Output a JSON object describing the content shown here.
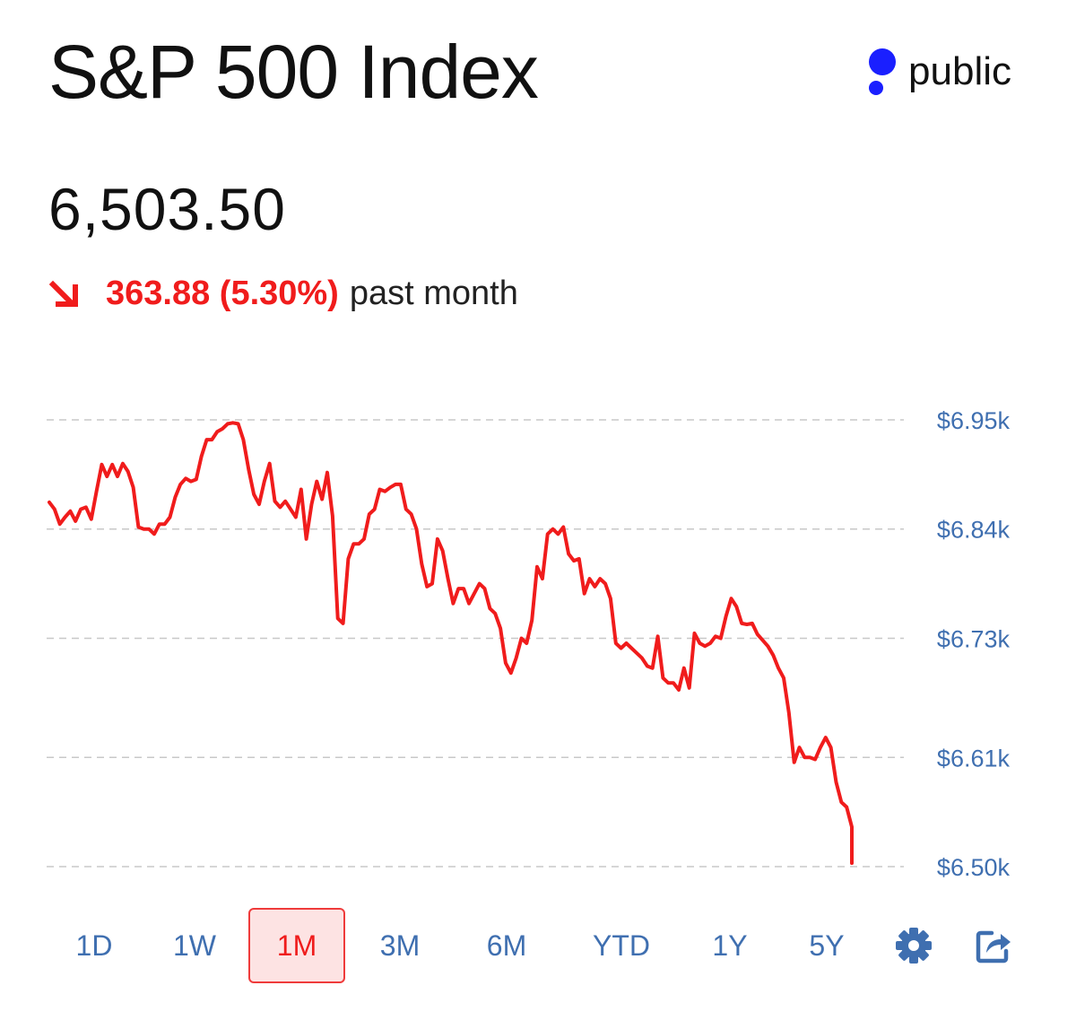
{
  "header": {
    "title": "S&P 500 Index",
    "brand_name": "public"
  },
  "quote": {
    "price": "6,503.50",
    "change_value": "363.88 (5.30%)",
    "change_period": "past month",
    "direction": "down"
  },
  "colors": {
    "down": "#f01c1c",
    "axis_label": "#3f6fb0",
    "grid": "#c8c8c8",
    "brand_blue": "#1a1fff"
  },
  "range_tabs": {
    "items": [
      "1D",
      "1W",
      "1M",
      "3M",
      "6M",
      "YTD",
      "1Y",
      "5Y"
    ],
    "selected": "1M"
  },
  "toolbar": {
    "settings_icon": "gear-icon",
    "share_icon": "share-icon"
  },
  "chart_data": {
    "type": "line",
    "title": "S&P 500 Index",
    "xlabel": "",
    "ylabel": "",
    "y_ticks": [
      {
        "value": 6950,
        "label": "$6.95k"
      },
      {
        "value": 6840,
        "label": "$6.84k"
      },
      {
        "value": 6730,
        "label": "$6.73k"
      },
      {
        "value": 6610,
        "label": "$6.61k"
      },
      {
        "value": 6500,
        "label": "$6.50k"
      }
    ],
    "ylim": [
      6500,
      6950
    ],
    "grid": true,
    "series": [
      {
        "name": "S&P 500",
        "values": [
          6867,
          6860,
          6845,
          6852,
          6858,
          6848,
          6860,
          6862,
          6850,
          6878,
          6905,
          6893,
          6905,
          6893,
          6906,
          6898,
          6882,
          6842,
          6840,
          6840,
          6835,
          6845,
          6845,
          6852,
          6872,
          6885,
          6891,
          6888,
          6890,
          6913,
          6930,
          6930,
          6938,
          6941,
          6946,
          6947,
          6946,
          6930,
          6900,
          6875,
          6865,
          6888,
          6906,
          6868,
          6862,
          6868,
          6860,
          6852,
          6880,
          6830,
          6865,
          6888,
          6870,
          6897,
          6853,
          6750,
          6745,
          6810,
          6825,
          6825,
          6830,
          6855,
          6860,
          6880,
          6878,
          6882,
          6885,
          6885,
          6860,
          6855,
          6840,
          6805,
          6782,
          6785,
          6830,
          6818,
          6790,
          6765,
          6780,
          6780,
          6765,
          6775,
          6785,
          6780,
          6760,
          6755,
          6740,
          6705,
          6695,
          6710,
          6730,
          6725,
          6748,
          6802,
          6790,
          6835,
          6840,
          6835,
          6842,
          6815,
          6808,
          6810,
          6775,
          6790,
          6782,
          6790,
          6785,
          6770,
          6725,
          6720,
          6725,
          6720,
          6715,
          6710,
          6702,
          6700,
          6732,
          6690,
          6685,
          6685,
          6678,
          6700,
          6680,
          6735,
          6725,
          6722,
          6725,
          6732,
          6730,
          6752,
          6770,
          6762,
          6745,
          6744,
          6745,
          6734,
          6728,
          6722,
          6713,
          6700,
          6690,
          6655,
          6605,
          6620,
          6610,
          6610,
          6608,
          6620,
          6630,
          6620,
          6585,
          6565,
          6560,
          6540
        ]
      }
    ]
  }
}
